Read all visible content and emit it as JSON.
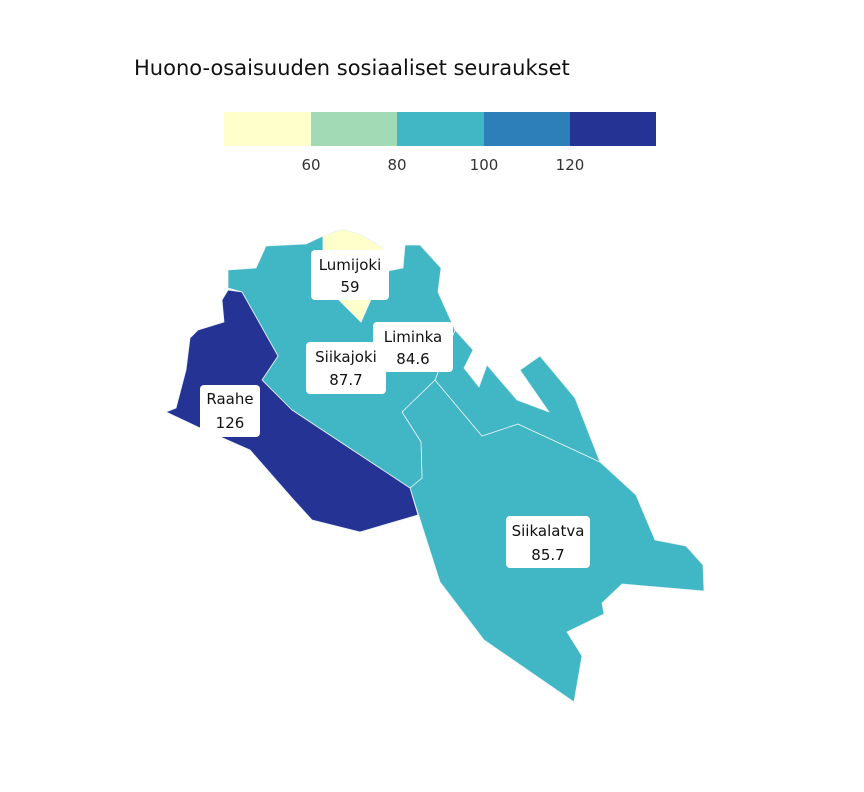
{
  "title": "Huono-osaisuuden sosiaaliset seuraukset",
  "legend": {
    "breaks": [
      "60",
      "80",
      "100",
      "120"
    ],
    "colors": [
      "#ffffcc",
      "#a1dab4",
      "#41b6c4",
      "#2c7fb8",
      "#253494"
    ]
  },
  "regions": [
    {
      "id": "lumijoki",
      "name": "Lumijoki",
      "value": "59",
      "color": "#ffffcc"
    },
    {
      "id": "liminka",
      "name": "Liminka",
      "value": "84.6",
      "color": "#41b6c4"
    },
    {
      "id": "siikajoki",
      "name": "Siikajoki",
      "value": "87.7",
      "color": "#41b6c4"
    },
    {
      "id": "raahe",
      "name": "Raahe",
      "value": "126",
      "color": "#253494"
    },
    {
      "id": "siikalatva",
      "name": "Siikalatva",
      "value": "85.7",
      "color": "#41b6c4"
    }
  ]
}
